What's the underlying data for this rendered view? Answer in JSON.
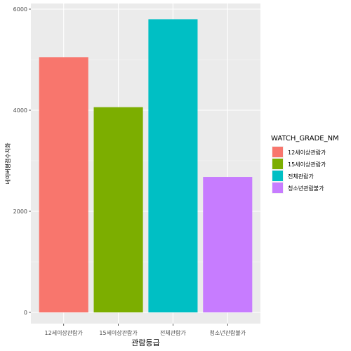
{
  "chart_data": {
    "type": "bar",
    "categories": [
      "12세이상관람가",
      "15세이상관람가",
      "전체관람가",
      "청소년관람불가"
    ],
    "values": [
      5050,
      4060,
      5800,
      2680
    ],
    "colors": [
      "#F8766D",
      "#7CAE00",
      "#00BFC4",
      "#C77CFF"
    ],
    "title": "",
    "xlabel": "관람등급",
    "ylabel": "네이버평점수치화",
    "ylim": [
      0,
      6000
    ],
    "yticks": [
      0,
      2000,
      4000,
      6000
    ],
    "ytick_labels": [
      "0",
      "2000",
      "4000",
      "6000"
    ],
    "grid": true,
    "legend": {
      "title": "WATCH_GRADE_NM",
      "placement": "right",
      "entries": [
        "12세이상관람가",
        "15세이상관람가",
        "전체관람가",
        "청소년관람불가"
      ]
    }
  }
}
